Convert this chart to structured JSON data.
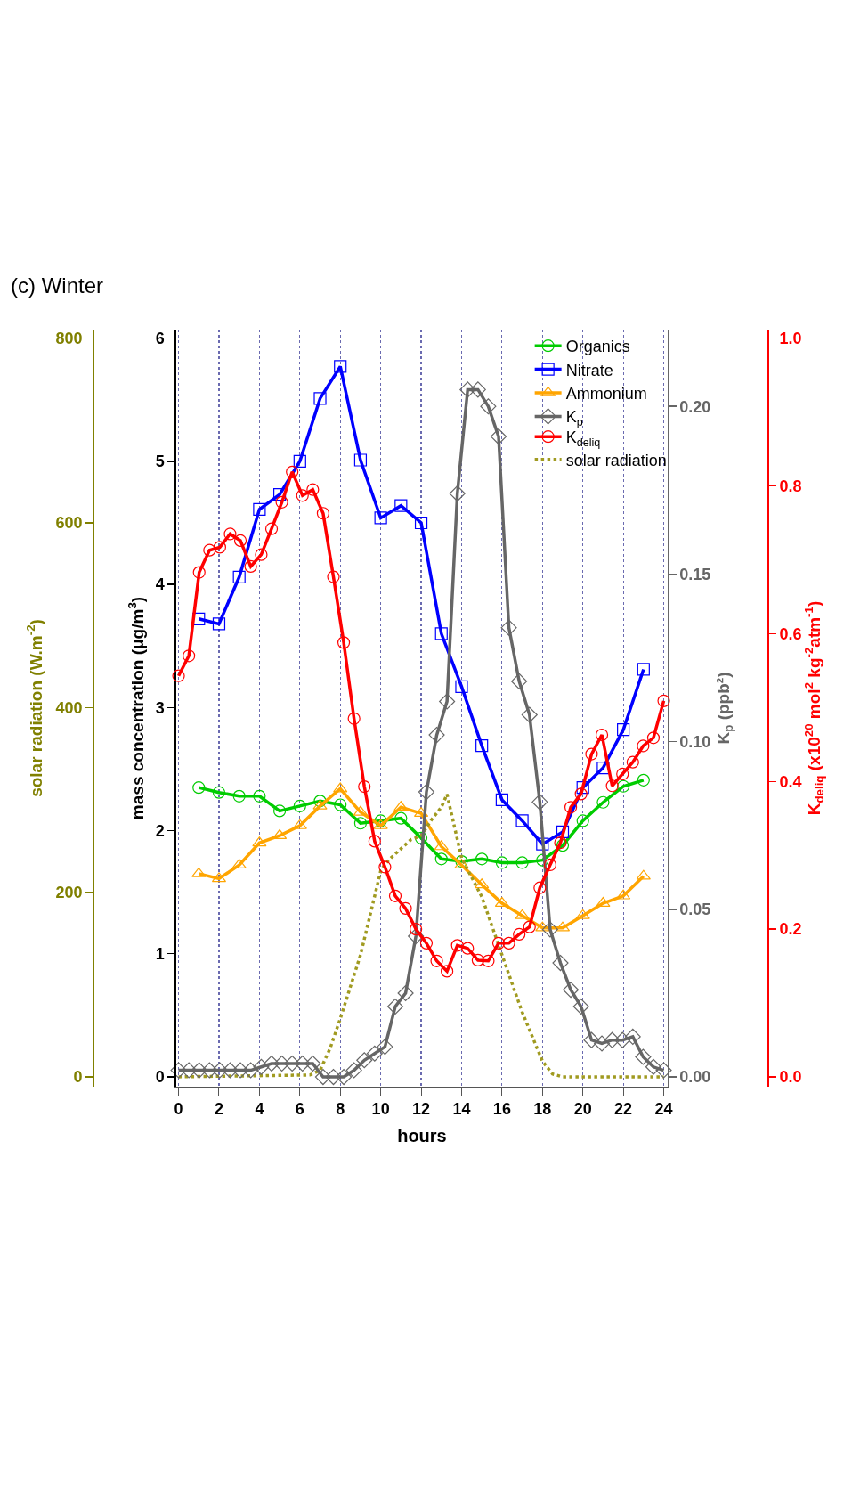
{
  "chart_data": [
    {
      "type": "line",
      "title": "(c) Winter",
      "xlabel": "hours",
      "ylabel": "mass concentration (μg/m$^{3}$)",
      "y2label": "solar radiation (W.m$^{-2}$)",
      "y3label": "K$_{p}$ (ppb²)",
      "xlim": [
        -0.12,
        24.2
      ],
      "xticks": [
        0,
        2,
        4,
        6,
        8,
        10,
        12,
        14,
        16,
        18,
        20,
        22,
        24
      ],
      "ylim": [
        -0.08,
        6.07
      ],
      "yticks": [
        0,
        1,
        2,
        3,
        4,
        5,
        6
      ],
      "y2lim": [
        -10.7,
        809.3
      ],
      "y2ticks": [
        0,
        200,
        400,
        600,
        800
      ],
      "y3lim": [
        -0.0029,
        0.2229
      ],
      "y3ticks": [
        {
          "value": 0,
          "label": "0.00"
        },
        {
          "value": 0.05,
          "label": "0.05"
        },
        {
          "value": 0.1,
          "label": "0.10"
        },
        {
          "value": 0.15,
          "label": "0.15"
        },
        {
          "value": 0.2,
          "label": "0.20"
        }
      ],
      "grid": "x",
      "legend": "top right",
      "line_style": "solid",
      "series": [
        {
          "name": "Organics",
          "color": "#00cc00",
          "marker": "circle",
          "x": [
            1,
            2,
            3,
            4,
            5,
            6,
            7,
            8,
            9,
            10,
            11,
            12,
            13,
            14,
            15,
            16,
            17,
            18,
            19,
            20,
            21,
            22,
            23
          ],
          "values": [
            2.35,
            2.31,
            2.28,
            2.28,
            2.16,
            2.2,
            2.24,
            2.21,
            2.06,
            2.08,
            2.1,
            1.94,
            1.77,
            1.75,
            1.77,
            1.74,
            1.74,
            1.76,
            1.88,
            2.08,
            2.23,
            2.36,
            2.41
          ]
        },
        {
          "name": "Nitrate",
          "color": "#0000ff",
          "marker": "square",
          "x": [
            1,
            2,
            3,
            4,
            5,
            6,
            7,
            8,
            9,
            10,
            11,
            12,
            13,
            14,
            15,
            16,
            17,
            18,
            19,
            20,
            21,
            22,
            23
          ],
          "values": [
            3.72,
            3.68,
            4.06,
            4.61,
            4.73,
            5.0,
            5.51,
            5.77,
            5.01,
            4.54,
            4.64,
            4.5,
            3.6,
            3.17,
            2.69,
            2.25,
            2.08,
            1.89,
            1.99,
            2.35,
            2.51,
            2.82,
            3.31
          ]
        },
        {
          "name": "Ammonium",
          "color": "#ffa500",
          "marker": "triangle",
          "x": [
            1,
            2,
            3,
            4,
            5,
            6,
            7,
            8,
            9,
            10,
            11,
            12,
            13,
            14,
            15,
            16,
            17,
            18,
            19,
            20,
            21,
            22,
            23
          ],
          "values": [
            1.65,
            1.61,
            1.72,
            1.9,
            1.96,
            2.04,
            2.2,
            2.34,
            2.15,
            2.04,
            2.19,
            2.14,
            1.87,
            1.72,
            1.56,
            1.41,
            1.31,
            1.21,
            1.21,
            1.31,
            1.41,
            1.47,
            1.63
          ]
        },
        {
          "name": "K$_{p}$",
          "color": "#666666",
          "marker": "diamond",
          "axis": "y3",
          "x": [
            0,
            0.51,
            1.02,
            1.53,
            2.04,
            2.55,
            3.06,
            3.57,
            4.09,
            4.6,
            5.11,
            5.62,
            6.13,
            6.64,
            7.15,
            7.66,
            8.17,
            8.68,
            9.19,
            9.7,
            10.21,
            10.72,
            11.23,
            11.74,
            12.26,
            12.77,
            13.28,
            13.79,
            14.3,
            14.81,
            15.32,
            15.83,
            16.34,
            16.85,
            17.36,
            17.87,
            18.38,
            18.89,
            19.4,
            19.91,
            20.43,
            20.94,
            21.45,
            21.96,
            22.47,
            22.98,
            23.49,
            24
          ],
          "values": [
            0.002,
            0.002,
            0.002,
            0.002,
            0.002,
            0.002,
            0.002,
            0.002,
            0.003,
            0.004,
            0.004,
            0.004,
            0.004,
            0.004,
            0.0,
            0.0,
            0.0,
            0.002,
            0.005,
            0.007,
            0.009,
            0.021,
            0.025,
            0.042,
            0.085,
            0.102,
            0.112,
            0.174,
            0.205,
            0.205,
            0.2,
            0.191,
            0.134,
            0.118,
            0.108,
            0.082,
            0.044,
            0.034,
            0.026,
            0.021,
            0.011,
            0.01,
            0.011,
            0.011,
            0.012,
            0.006,
            0.003,
            0.002
          ]
        },
        {
          "name": "solar radiation",
          "color": "#a09a20",
          "marker": "none",
          "line_style": "dotted",
          "axis": "y2",
          "x": [
            0,
            6.5,
            7,
            7.5,
            8,
            9,
            10,
            10.2,
            10.5,
            11,
            11.5,
            12,
            12.5,
            13,
            13.28,
            14,
            15,
            16,
            17,
            18,
            18.5,
            19,
            20,
            21,
            22,
            23,
            24
          ],
          "values": [
            0,
            2,
            7,
            31,
            63,
            132,
            223,
            230,
            237,
            247,
            257,
            261,
            278,
            292,
            306,
            237,
            195,
            132,
            70,
            17,
            3,
            0,
            0,
            0,
            0,
            0,
            0
          ]
        }
      ]
    },
    {
      "type": "line",
      "ylabel": "K$_{deliq}$ (x10$^{20}$ mol$^{2}$ kg$^{-2}$atm$^{-1}$)",
      "tick_labels": "y",
      "legend": "top right",
      "line_style": "solid",
      "xlim": [
        -0.12,
        24.2
      ],
      "ylim": [
        -0.0133,
        1.0117
      ],
      "yticks": [
        {
          "value": 0,
          "label": "0.0"
        },
        {
          "value": 0.2,
          "label": "0.2"
        },
        {
          "value": 0.4,
          "label": "0.4"
        },
        {
          "value": 0.6,
          "label": "0.6"
        },
        {
          "value": 0.8,
          "label": "0.8"
        },
        {
          "value": 1,
          "label": "1.0"
        }
      ],
      "series": [
        {
          "name": "K$_{deliq}$",
          "color": "#ff0000",
          "marker": "circle",
          "x": [
            0,
            0.51,
            1.02,
            1.53,
            2.04,
            2.55,
            3.06,
            3.57,
            4.09,
            4.6,
            5.11,
            5.62,
            6.13,
            6.64,
            7.15,
            7.66,
            8.17,
            8.68,
            9.19,
            9.7,
            10.21,
            10.72,
            11.23,
            11.74,
            12.26,
            12.77,
            13.28,
            13.79,
            14.3,
            14.81,
            15.32,
            15.83,
            16.34,
            16.85,
            17.36,
            17.87,
            18.38,
            18.89,
            19.4,
            19.91,
            20.43,
            20.94,
            21.45,
            21.96,
            22.47,
            22.98,
            23.49,
            24
          ],
          "values": [
            0.543,
            0.57,
            0.683,
            0.713,
            0.717,
            0.735,
            0.726,
            0.691,
            0.707,
            0.742,
            0.778,
            0.819,
            0.787,
            0.795,
            0.763,
            0.677,
            0.588,
            0.485,
            0.393,
            0.319,
            0.284,
            0.245,
            0.228,
            0.2,
            0.181,
            0.157,
            0.143,
            0.178,
            0.174,
            0.158,
            0.157,
            0.181,
            0.181,
            0.193,
            0.203,
            0.256,
            0.287,
            0.317,
            0.365,
            0.383,
            0.437,
            0.463,
            0.394,
            0.41,
            0.426,
            0.448,
            0.459,
            0.509
          ]
        }
      ]
    }
  ]
}
